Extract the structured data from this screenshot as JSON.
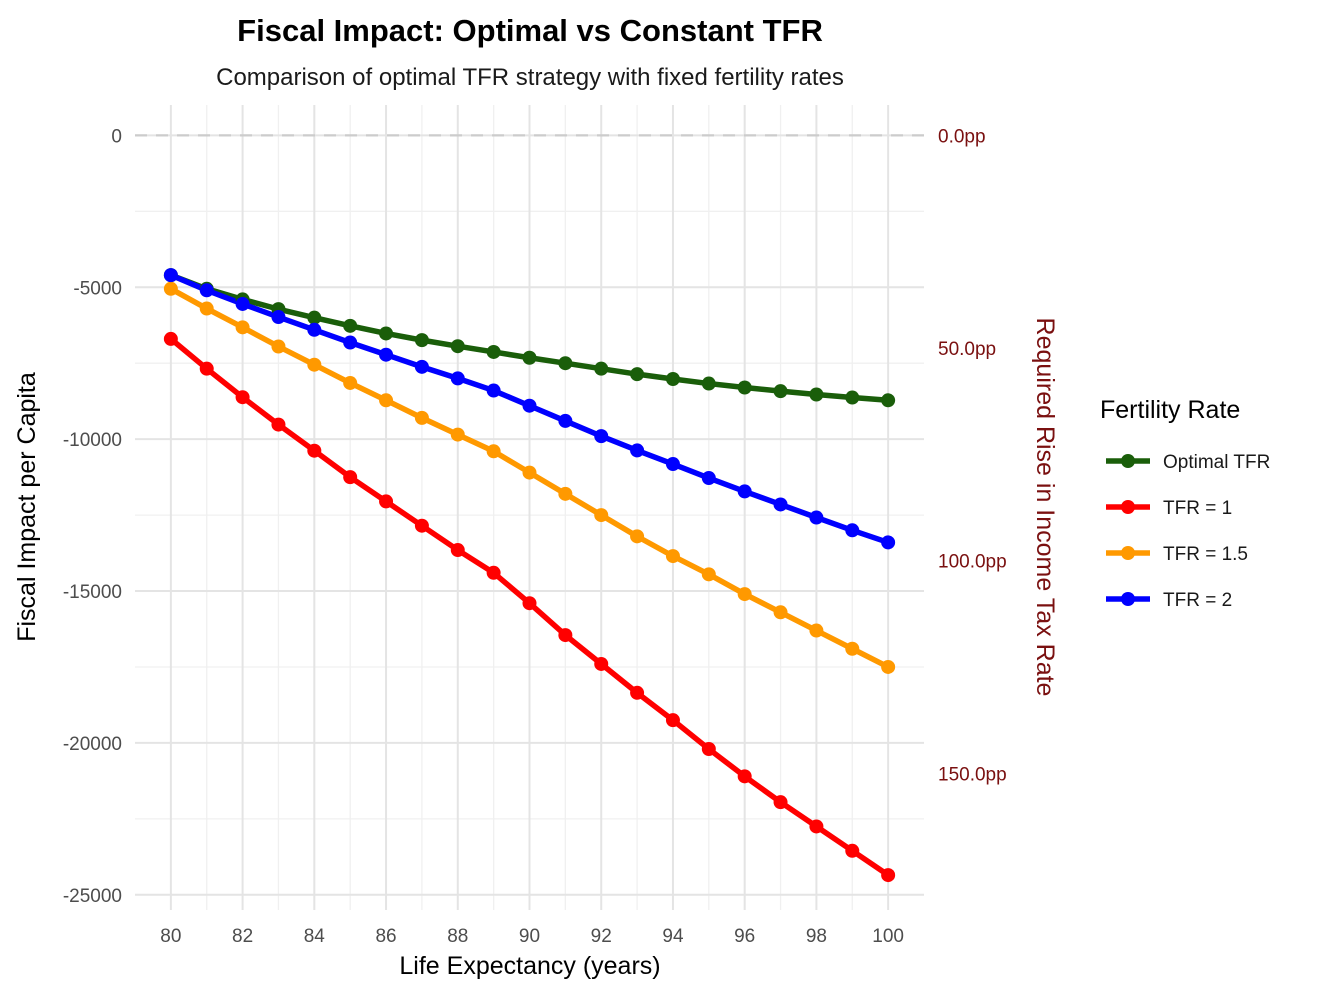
{
  "chart_data": {
    "type": "line",
    "title": "Fiscal Impact: Optimal vs Constant TFR",
    "subtitle": "Comparison of optimal TFR strategy with fixed fertility rates",
    "xlabel": "Life Expectancy (years)",
    "ylabel": "Fiscal Impact per Capita",
    "ylabel_secondary": "Required Rise in Income Tax Rate",
    "xlim": [
      79,
      101
    ],
    "ylim": [
      -25500,
      1000
    ],
    "x_ticks": [
      80,
      82,
      84,
      86,
      88,
      90,
      92,
      94,
      96,
      98,
      100
    ],
    "y_ticks": [
      0,
      -5000,
      -10000,
      -15000,
      -20000,
      -25000
    ],
    "y_tick_labels": [
      "0",
      "-5000",
      "-10000",
      "-15000",
      "-20000",
      "-25000"
    ],
    "secondary_ticks": [
      {
        "value": 0,
        "label": "0.0pp"
      },
      {
        "value": -7000,
        "label": "50.0pp"
      },
      {
        "value": -14000,
        "label": "100.0pp"
      },
      {
        "value": -21000,
        "label": "150.0pp"
      }
    ],
    "reference_line": 0,
    "grid": true,
    "legend": {
      "title": "Fertility Rate",
      "position": "right"
    },
    "x": [
      80,
      81,
      82,
      83,
      84,
      85,
      86,
      87,
      88,
      89,
      90,
      91,
      92,
      93,
      94,
      95,
      96,
      97,
      98,
      99,
      100
    ],
    "series": [
      {
        "name": "Optimal TFR",
        "color": "#1a5e0a",
        "values": [
          -4600,
          -5050,
          -5400,
          -5720,
          -6000,
          -6270,
          -6520,
          -6740,
          -6940,
          -7130,
          -7320,
          -7500,
          -7680,
          -7860,
          -8020,
          -8170,
          -8300,
          -8420,
          -8530,
          -8630,
          -8720
        ]
      },
      {
        "name": "TFR = 1",
        "color": "#ff0000",
        "values": [
          -6700,
          -7680,
          -8620,
          -9520,
          -10380,
          -11250,
          -12050,
          -12850,
          -13650,
          -14400,
          -15400,
          -16450,
          -17400,
          -18350,
          -19250,
          -20200,
          -21100,
          -21950,
          -22750,
          -23550,
          -24350
        ]
      },
      {
        "name": "TFR = 1.5",
        "color": "#ff9900",
        "values": [
          -5050,
          -5700,
          -6320,
          -6950,
          -7550,
          -8150,
          -8720,
          -9300,
          -9850,
          -10400,
          -11100,
          -11800,
          -12500,
          -13200,
          -13850,
          -14450,
          -15100,
          -15700,
          -16300,
          -16900,
          -17500
        ]
      },
      {
        "name": "TFR = 2",
        "color": "#0000ff",
        "values": [
          -4600,
          -5100,
          -5550,
          -5980,
          -6400,
          -6820,
          -7220,
          -7620,
          -8000,
          -8400,
          -8900,
          -9400,
          -9900,
          -10370,
          -10820,
          -11280,
          -11720,
          -12150,
          -12580,
          -13000,
          -13400
        ]
      }
    ]
  }
}
